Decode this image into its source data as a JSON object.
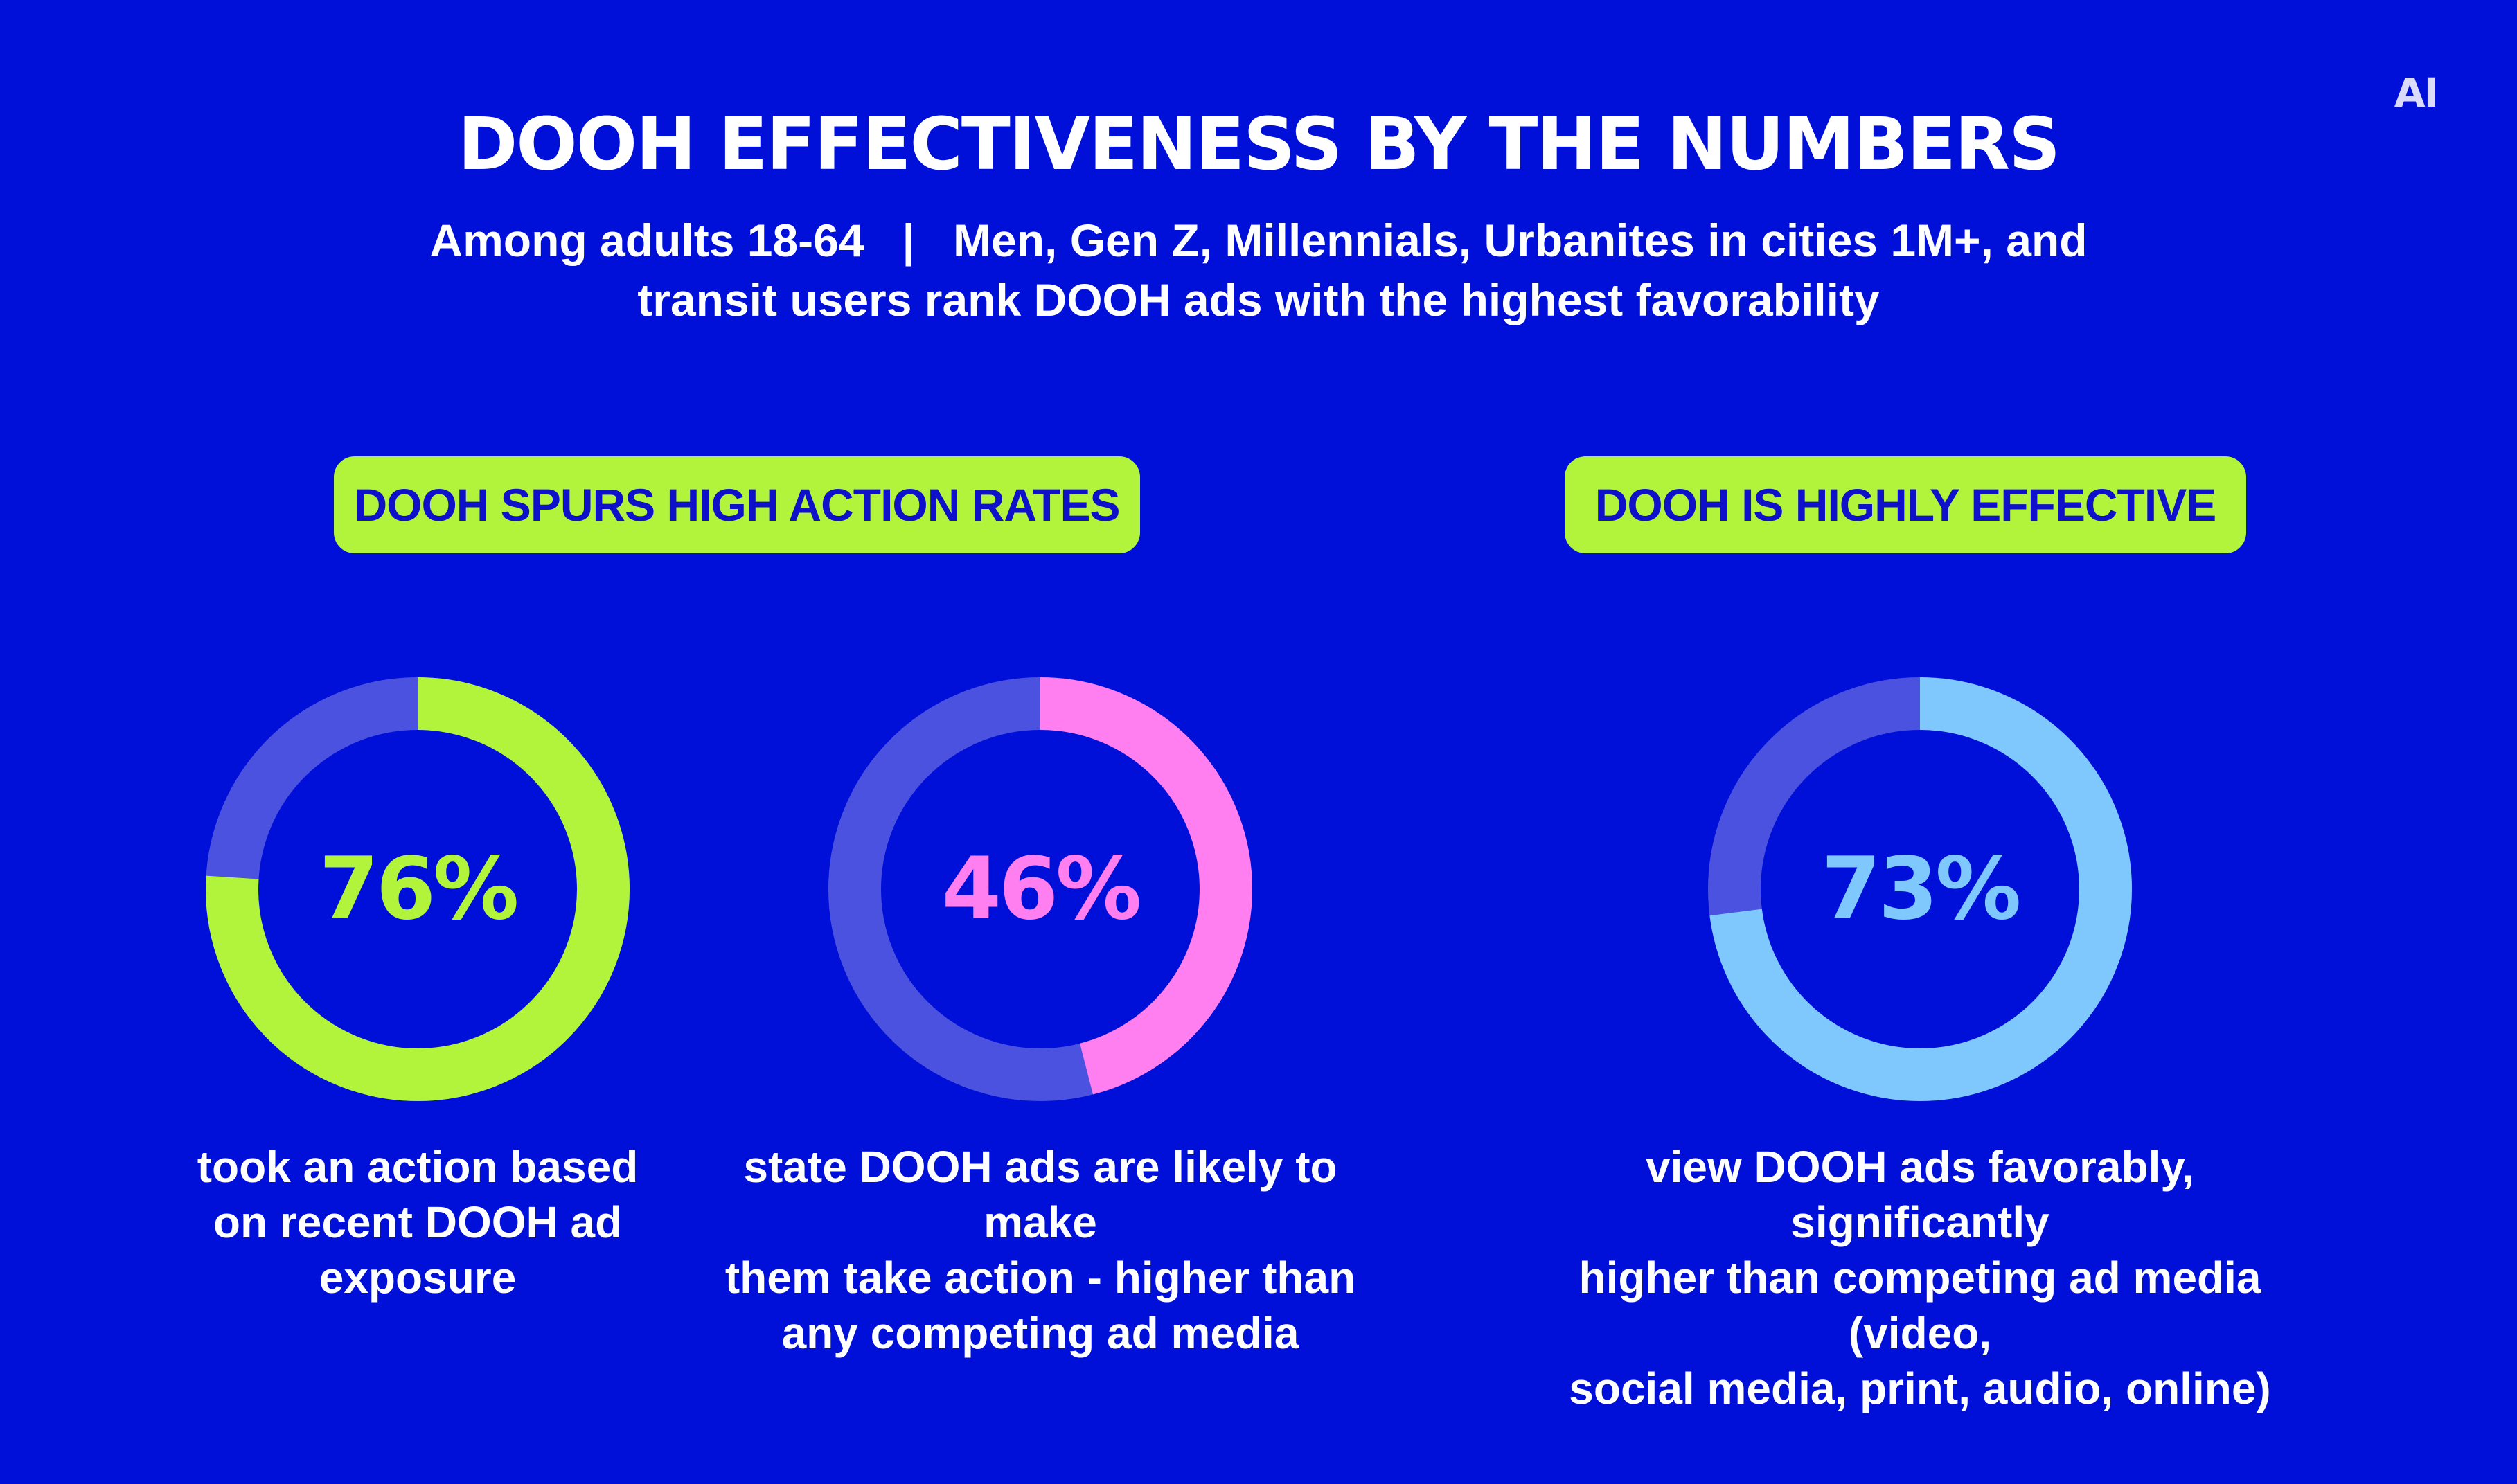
{
  "colors": {
    "background": "#0010d8",
    "track": "#4b52e0",
    "pill": "#b2f43b",
    "pill_text": "#0e11c9",
    "green": "#b2f43b",
    "pink": "#ff7ff0",
    "blue": "#7ec8fd"
  },
  "logo": {
    "text": "AI"
  },
  "header": {
    "title": "DOOH EFFECTIVENESS BY THE NUMBERS",
    "subtitle_line1": "Among adults 18-64   |   Men, Gen Z, Millennials, Urbanites in cities 1M+, and",
    "subtitle_line2": "transit users rank DOOH ads with the highest favorability"
  },
  "sections": [
    {
      "label": "DOOH SPURS HIGH ACTION RATES"
    },
    {
      "label": "DOOH IS HIGHLY EFFECTIVE"
    }
  ],
  "chart_data": [
    {
      "type": "pie",
      "style": "donut",
      "value_percent": 76,
      "label": "76%",
      "caption": [
        "took an action based",
        "on recent DOOH ad",
        "exposure"
      ],
      "color": "#b2f43b"
    },
    {
      "type": "pie",
      "style": "donut",
      "value_percent": 46,
      "label": "46%",
      "caption": [
        "state DOOH ads are likely to make",
        "them take action - higher than",
        "any competing ad media"
      ],
      "color": "#ff7ff0"
    },
    {
      "type": "pie",
      "style": "donut",
      "value_percent": 73,
      "label": "73%",
      "caption": [
        "view DOOH ads favorably, significantly",
        "higher than competing ad media (video,",
        "social media, print, audio, online)"
      ],
      "color": "#7ec8fd"
    }
  ]
}
